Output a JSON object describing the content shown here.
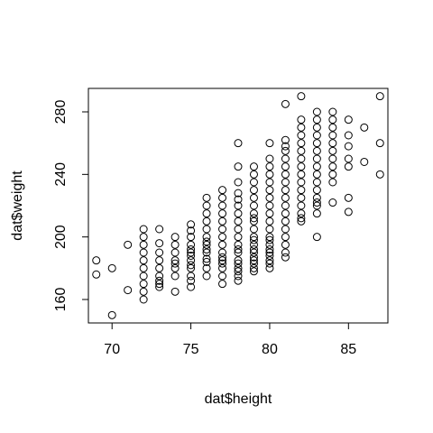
{
  "chart_data": {
    "type": "scatter",
    "title": "",
    "xlabel": "dat$height",
    "ylabel": "dat$weight",
    "xlim": [
      68.5,
      87.5
    ],
    "ylim": [
      145,
      295
    ],
    "x_ticks": [
      70,
      75,
      80,
      85
    ],
    "y_ticks": [
      160,
      200,
      240,
      280
    ],
    "grid": false,
    "legend": "none",
    "marker": "open-circle",
    "x": [
      69,
      69,
      70,
      70,
      71,
      71,
      72,
      72,
      72,
      72,
      72,
      72,
      72,
      72,
      72,
      72,
      73,
      73,
      73,
      73,
      73,
      73,
      73,
      73,
      73,
      74,
      74,
      74,
      74,
      74,
      74,
      74,
      74,
      75,
      75,
      75,
      75,
      75,
      75,
      75,
      75,
      75,
      75,
      75,
      75,
      75,
      76,
      76,
      76,
      76,
      76,
      76,
      76,
      76,
      76,
      76,
      76,
      76,
      76,
      76,
      77,
      77,
      77,
      77,
      77,
      77,
      77,
      77,
      77,
      77,
      77,
      77,
      77,
      77,
      77,
      78,
      78,
      78,
      78,
      78,
      78,
      78,
      78,
      78,
      78,
      78,
      78,
      78,
      78,
      78,
      78,
      78,
      78,
      78,
      79,
      79,
      79,
      79,
      79,
      79,
      79,
      79,
      79,
      79,
      79,
      79,
      79,
      79,
      79,
      79,
      79,
      79,
      79,
      79,
      80,
      80,
      80,
      80,
      80,
      80,
      80,
      80,
      80,
      80,
      80,
      80,
      80,
      80,
      80,
      80,
      80,
      80,
      80,
      80,
      81,
      81,
      81,
      81,
      81,
      81,
      81,
      81,
      81,
      81,
      81,
      81,
      81,
      81,
      81,
      81,
      81,
      81,
      82,
      82,
      82,
      82,
      82,
      82,
      82,
      82,
      82,
      82,
      82,
      82,
      82,
      82,
      82,
      82,
      83,
      83,
      83,
      83,
      83,
      83,
      83,
      83,
      83,
      83,
      83,
      83,
      83,
      83,
      83,
      83,
      84,
      84,
      84,
      84,
      84,
      84,
      84,
      84,
      84,
      84,
      84,
      85,
      85,
      85,
      85,
      85,
      85,
      85,
      86,
      86,
      87,
      87,
      87
    ],
    "y": [
      185,
      176,
      180,
      150,
      195,
      166,
      205,
      200,
      195,
      190,
      185,
      180,
      175,
      170,
      165,
      160,
      205,
      196,
      190,
      185,
      180,
      175,
      172,
      170,
      168,
      200,
      195,
      190,
      185,
      183,
      180,
      175,
      165,
      208,
      204,
      200,
      195,
      192,
      190,
      188,
      185,
      182,
      180,
      175,
      172,
      168,
      225,
      220,
      215,
      210,
      205,
      200,
      197,
      195,
      192,
      190,
      186,
      184,
      180,
      175,
      230,
      225,
      220,
      215,
      210,
      205,
      200,
      195,
      190,
      187,
      185,
      183,
      180,
      175,
      170,
      260,
      245,
      235,
      228,
      224,
      220,
      215,
      210,
      205,
      200,
      195,
      192,
      190,
      185,
      183,
      180,
      178,
      175,
      172,
      245,
      240,
      235,
      230,
      225,
      220,
      215,
      212,
      210,
      205,
      200,
      198,
      195,
      192,
      190,
      187,
      185,
      183,
      180,
      178,
      260,
      250,
      245,
      240,
      235,
      230,
      225,
      220,
      215,
      210,
      205,
      200,
      198,
      195,
      192,
      190,
      188,
      185,
      183,
      180,
      285,
      262,
      258,
      255,
      250,
      245,
      240,
      235,
      230,
      225,
      220,
      215,
      210,
      205,
      200,
      195,
      190,
      187,
      290,
      275,
      270,
      265,
      260,
      255,
      250,
      245,
      240,
      235,
      230,
      225,
      220,
      215,
      212,
      210,
      280,
      275,
      270,
      265,
      260,
      255,
      250,
      245,
      240,
      235,
      230,
      225,
      222,
      220,
      215,
      200,
      280,
      275,
      270,
      265,
      260,
      255,
      250,
      245,
      240,
      235,
      222,
      275,
      265,
      258,
      250,
      245,
      225,
      216,
      270,
      248,
      290,
      260,
      240
    ]
  }
}
